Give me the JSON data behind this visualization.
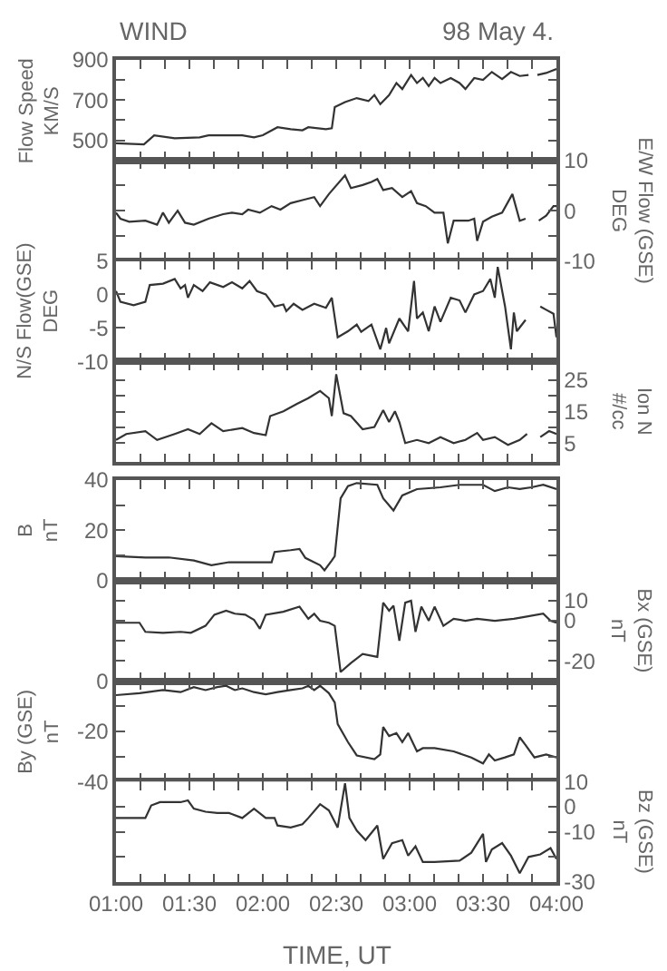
{
  "chart_data": [
    {
      "type": "line",
      "title": "WIND",
      "subtitle": "98 May 4.",
      "ylabel": "Flow Speed\nKM/S",
      "tick_labels": "y",
      "xlim": [
        1,
        4
      ],
      "xticks": [
        {
          "value": 1,
          "label": null
        },
        {
          "value": 1.1667,
          "label": null
        },
        {
          "value": 1.3333,
          "label": null
        },
        {
          "value": 1.5,
          "label": null
        },
        {
          "value": 1.6667,
          "label": null
        },
        {
          "value": 1.8333,
          "label": null
        },
        {
          "value": 2,
          "label": null
        },
        {
          "value": 2.1667,
          "label": null
        },
        {
          "value": 2.3333,
          "label": null
        },
        {
          "value": 2.5,
          "label": null
        },
        {
          "value": 2.6667,
          "label": null
        },
        {
          "value": 2.8333,
          "label": null
        },
        {
          "value": 3,
          "label": null
        },
        {
          "value": 3.1667,
          "label": null
        },
        {
          "value": 3.3333,
          "label": null
        },
        {
          "value": 3.5,
          "label": null
        },
        {
          "value": 3.6667,
          "label": null
        },
        {
          "value": 3.8333,
          "label": null
        },
        {
          "value": 4,
          "label": null
        }
      ],
      "ylim": [
        400,
        900
      ],
      "yticks": [
        {
          "value": 400,
          "label": null
        },
        500,
        {
          "value": 600,
          "label": null
        },
        700,
        {
          "value": 800,
          "label": null
        },
        900
      ],
      "series": [
        {
          "color": "#333333",
          "x": [
            1.0,
            1.19,
            1.26,
            1.4,
            1.57,
            1.63,
            1.86,
            1.94,
            2.0,
            2.1,
            2.19,
            2.27,
            2.31,
            2.43,
            2.47,
            2.49,
            2.56,
            2.64,
            2.72,
            2.76,
            2.8,
            2.86,
            2.91,
            2.95,
            3.01,
            3.05,
            3.09,
            3.13,
            3.17,
            3.21,
            3.28,
            3.34,
            3.38,
            3.44,
            3.5,
            3.56,
            3.63,
            3.69,
            3.75,
            3.81
          ],
          "values": [
            485,
            480,
            525,
            510,
            515,
            525,
            525,
            515,
            525,
            565,
            555,
            550,
            565,
            555,
            560,
            665,
            690,
            710,
            695,
            725,
            680,
            725,
            785,
            755,
            825,
            785,
            810,
            770,
            810,
            785,
            810,
            785,
            755,
            810,
            800,
            840,
            805,
            840,
            820,
            825
          ]
        },
        {
          "color": "#333333",
          "x": [
            3.87,
            3.93,
            4.0
          ],
          "values": [
            825,
            835,
            855
          ]
        }
      ]
    },
    {
      "type": "line",
      "y2label": "E/W Flow (GSE)\nDEG",
      "tick_labels": "y",
      "xlim": [
        1,
        4
      ],
      "xticks": [
        {
          "value": 1,
          "label": null
        },
        {
          "value": 1.1667,
          "label": null
        },
        {
          "value": 1.3333,
          "label": null
        },
        {
          "value": 1.5,
          "label": null
        },
        {
          "value": 1.6667,
          "label": null
        },
        {
          "value": 1.8333,
          "label": null
        },
        {
          "value": 2,
          "label": null
        },
        {
          "value": 2.1667,
          "label": null
        },
        {
          "value": 2.3333,
          "label": null
        },
        {
          "value": 2.5,
          "label": null
        },
        {
          "value": 2.6667,
          "label": null
        },
        {
          "value": 2.8333,
          "label": null
        },
        {
          "value": 3,
          "label": null
        },
        {
          "value": 3.1667,
          "label": null
        },
        {
          "value": 3.3333,
          "label": null
        },
        {
          "value": 3.5,
          "label": null
        },
        {
          "value": 3.6667,
          "label": null
        },
        {
          "value": 3.8333,
          "label": null
        },
        {
          "value": 4,
          "label": null
        }
      ],
      "y2lim": [
        -10,
        10
      ],
      "y2ticks": [
        -10,
        {
          "value": -5,
          "label": null
        },
        0,
        {
          "value": 5,
          "label": null
        },
        10
      ],
      "series": [
        {
          "color": "#333333",
          "axis": "y2",
          "x": [
            1.0,
            1.03,
            1.09,
            1.2,
            1.28,
            1.32,
            1.36,
            1.42,
            1.47,
            1.53,
            1.63,
            1.73,
            1.79,
            1.86,
            1.9,
            1.98,
            2.06,
            2.12,
            2.19,
            2.27,
            2.35,
            2.39,
            2.45,
            2.56,
            2.6,
            2.68,
            2.74,
            2.78,
            2.82,
            2.88,
            2.95,
            3.01,
            3.05,
            3.11,
            3.17,
            3.23,
            3.26,
            3.3,
            3.4,
            3.44,
            3.46,
            3.5,
            3.56,
            3.63,
            3.7,
            3.75,
            3.79
          ],
          "values": [
            -0.4,
            -1.6,
            -2.2,
            -2.0,
            -2.8,
            -0.4,
            -2.4,
            0,
            -2.4,
            -2.8,
            -1.6,
            -0.7,
            -0.4,
            -0.7,
            0.2,
            -0.4,
            0.9,
            0.2,
            1.5,
            2.1,
            2.7,
            0.9,
            3.3,
            7.0,
            4.5,
            5.1,
            5.7,
            6.3,
            4.1,
            4.5,
            2.7,
            3.9,
            1.5,
            0.9,
            -0.4,
            -0.4,
            -6.5,
            -2.0,
            -2.0,
            -1.6,
            -6.0,
            -2.2,
            -1.2,
            -0.4,
            3.3,
            -2.0,
            -1.6
          ]
        },
        {
          "color": "#333333",
          "axis": "y2",
          "x": [
            3.88,
            3.93,
            3.98,
            4.0
          ],
          "values": [
            -2.0,
            -1.0,
            0.9,
            0.9
          ]
        }
      ]
    },
    {
      "type": "line",
      "ylabel": "N/S Flow(GSE)\nDEG",
      "tick_labels": "y",
      "xlim": [
        1,
        4
      ],
      "xticks": [
        {
          "value": 1,
          "label": null
        },
        {
          "value": 1.1667,
          "label": null
        },
        {
          "value": 1.3333,
          "label": null
        },
        {
          "value": 1.5,
          "label": null
        },
        {
          "value": 1.6667,
          "label": null
        },
        {
          "value": 1.8333,
          "label": null
        },
        {
          "value": 2,
          "label": null
        },
        {
          "value": 2.1667,
          "label": null
        },
        {
          "value": 2.3333,
          "label": null
        },
        {
          "value": 2.5,
          "label": null
        },
        {
          "value": 2.6667,
          "label": null
        },
        {
          "value": 2.8333,
          "label": null
        },
        {
          "value": 3,
          "label": null
        },
        {
          "value": 3.1667,
          "label": null
        },
        {
          "value": 3.3333,
          "label": null
        },
        {
          "value": 3.5,
          "label": null
        },
        {
          "value": 3.6667,
          "label": null
        },
        {
          "value": 3.8333,
          "label": null
        },
        {
          "value": 4,
          "label": null
        }
      ],
      "ylim": [
        -10,
        5
      ],
      "yticks": [
        -10,
        -5,
        0,
        5
      ],
      "series": [
        {
          "color": "#333333",
          "x": [
            1.0,
            1.03,
            1.12,
            1.2,
            1.23,
            1.32,
            1.4,
            1.44,
            1.47,
            1.49,
            1.53,
            1.59,
            1.64,
            1.73,
            1.79,
            1.86,
            1.91,
            1.96,
            2.02,
            2.08,
            2.14,
            2.16,
            2.21,
            2.27,
            2.35,
            2.43,
            2.47,
            2.51,
            2.58,
            2.64,
            2.67,
            2.74,
            2.8,
            2.84,
            2.86,
            2.93,
            2.99,
            3.03,
            3.05,
            3.09,
            3.13,
            3.17,
            3.21,
            3.28,
            3.34,
            3.38,
            3.44,
            3.5,
            3.55,
            3.58,
            3.6,
            3.65,
            3.69,
            3.71,
            3.73,
            3.79
          ],
          "values": [
            0.5,
            -1.1,
            -1.6,
            -1.1,
            1.4,
            1.6,
            2.3,
            0.9,
            1.4,
            -0.5,
            1.4,
            0.5,
            1.8,
            1.1,
            1.8,
            0.9,
            2.0,
            0.5,
            0,
            -1.8,
            -1.5,
            -2.5,
            -1.4,
            -2.3,
            -1.4,
            -2.0,
            -0.5,
            -6.4,
            -5.5,
            -4.5,
            -5.6,
            -4.5,
            -8.2,
            -5.0,
            -7.3,
            -3.6,
            -5.5,
            2.0,
            -3.6,
            -2.7,
            -5.5,
            -1.8,
            -4.1,
            -0.5,
            -0.9,
            -2.7,
            0,
            0.5,
            2.3,
            -0.5,
            4.1,
            -1.8,
            -8.2,
            -2.7,
            -5.5,
            -3.8
          ]
        },
        {
          "color": "#333333",
          "x": [
            3.89,
            3.93,
            3.98,
            4.0
          ],
          "values": [
            -1.8,
            -2.3,
            -2.9,
            -6.4
          ]
        }
      ]
    },
    {
      "type": "line",
      "y2label": "Ion N\n#/cc",
      "tick_labels": "y",
      "xlim": [
        1,
        4
      ],
      "xticks": [
        {
          "value": 1,
          "label": null
        },
        {
          "value": 1.1667,
          "label": null
        },
        {
          "value": 1.3333,
          "label": null
        },
        {
          "value": 1.5,
          "label": null
        },
        {
          "value": 1.6667,
          "label": null
        },
        {
          "value": 1.8333,
          "label": null
        },
        {
          "value": 2,
          "label": null
        },
        {
          "value": 2.1667,
          "label": null
        },
        {
          "value": 2.3333,
          "label": null
        },
        {
          "value": 2.5,
          "label": null
        },
        {
          "value": 2.6667,
          "label": null
        },
        {
          "value": 2.8333,
          "label": null
        },
        {
          "value": 3,
          "label": null
        },
        {
          "value": 3.1667,
          "label": null
        },
        {
          "value": 3.3333,
          "label": null
        },
        {
          "value": 3.5,
          "label": null
        },
        {
          "value": 3.6667,
          "label": null
        },
        {
          "value": 3.8333,
          "label": null
        },
        {
          "value": 4,
          "label": null
        }
      ],
      "y2lim": [
        -1,
        31
      ],
      "y2ticks": [
        5,
        {
          "value": 10,
          "label": null
        },
        15,
        {
          "value": 20,
          "label": null
        },
        25
      ],
      "series": [
        {
          "color": "#333333",
          "axis": "y2",
          "x": [
            1.0,
            1.07,
            1.2,
            1.28,
            1.4,
            1.49,
            1.57,
            1.65,
            1.73,
            1.86,
            1.94,
            2.02,
            2.05,
            2.14,
            2.23,
            2.31,
            2.39,
            2.45,
            2.47,
            2.5,
            2.55,
            2.6,
            2.68,
            2.76,
            2.82,
            2.86,
            2.9,
            2.93,
            2.97,
            3.05,
            3.13,
            3.21,
            3.3,
            3.38,
            3.46,
            3.5,
            3.58,
            3.67,
            3.75,
            3.8
          ],
          "values": [
            6.0,
            7.9,
            8.8,
            6.0,
            7.9,
            9.4,
            7.9,
            11.3,
            8.8,
            9.8,
            8.2,
            7.5,
            13.6,
            15.1,
            17.4,
            19.3,
            21.6,
            19.3,
            13.6,
            26.9,
            14.5,
            13.6,
            9.4,
            10.1,
            15.5,
            11.7,
            15.1,
            11.7,
            5.0,
            6.0,
            5.0,
            6.9,
            5.0,
            6.0,
            8.2,
            6.0,
            6.9,
            4.4,
            6.0,
            7.9
          ]
        },
        {
          "color": "#333333",
          "axis": "y2",
          "x": [
            3.89,
            3.95,
            4.0
          ],
          "values": [
            6.9,
            8.8,
            7.9
          ]
        }
      ]
    },
    {
      "type": "line",
      "ylabel": "B\nnT",
      "tick_labels": "y",
      "xlim": [
        1,
        4
      ],
      "xticks": [
        {
          "value": 1,
          "label": null
        },
        {
          "value": 1.1667,
          "label": null
        },
        {
          "value": 1.3333,
          "label": null
        },
        {
          "value": 1.5,
          "label": null
        },
        {
          "value": 1.6667,
          "label": null
        },
        {
          "value": 1.8333,
          "label": null
        },
        {
          "value": 2,
          "label": null
        },
        {
          "value": 2.1667,
          "label": null
        },
        {
          "value": 2.3333,
          "label": null
        },
        {
          "value": 2.5,
          "label": null
        },
        {
          "value": 2.6667,
          "label": null
        },
        {
          "value": 2.8333,
          "label": null
        },
        {
          "value": 3,
          "label": null
        },
        {
          "value": 3.1667,
          "label": null
        },
        {
          "value": 3.3333,
          "label": null
        },
        {
          "value": 3.5,
          "label": null
        },
        {
          "value": 3.6667,
          "label": null
        },
        {
          "value": 3.8333,
          "label": null
        },
        {
          "value": 4,
          "label": null
        }
      ],
      "ylim": [
        0,
        40
      ],
      "yticks": [
        0,
        {
          "value": 10,
          "label": null
        },
        20,
        {
          "value": 30,
          "label": null
        },
        40
      ],
      "series": [
        {
          "color": "#333333",
          "x": [
            1.0,
            1.2,
            1.36,
            1.53,
            1.65,
            1.77,
            1.94,
            2.06,
            2.08,
            2.19,
            2.25,
            2.29,
            2.39,
            2.42,
            2.47,
            2.49,
            2.53,
            2.58,
            2.64,
            2.78,
            2.82,
            2.89,
            2.95,
            3.05,
            3.21,
            3.34,
            3.5,
            3.58,
            3.67,
            3.75,
            3.83,
            3.91,
            4.0
          ],
          "values": [
            9.7,
            9.2,
            9.2,
            8.0,
            6.1,
            7.3,
            7.3,
            7.3,
            11.4,
            12.1,
            12.6,
            9.0,
            6.1,
            4.1,
            8.0,
            9.7,
            32.7,
            37.6,
            38.8,
            38.1,
            32.7,
            27.9,
            33.9,
            36.4,
            37.1,
            38.1,
            38.1,
            35.6,
            37.1,
            36.4,
            37.1,
            38.1,
            36.4
          ]
        }
      ]
    },
    {
      "type": "line",
      "y2label": "Bx (GSE)\nnT",
      "tick_labels": "y",
      "xlim": [
        1,
        4
      ],
      "xticks": [
        {
          "value": 1,
          "label": null
        },
        {
          "value": 1.1667,
          "label": null
        },
        {
          "value": 1.3333,
          "label": null
        },
        {
          "value": 1.5,
          "label": null
        },
        {
          "value": 1.6667,
          "label": null
        },
        {
          "value": 1.8333,
          "label": null
        },
        {
          "value": 2,
          "label": null
        },
        {
          "value": 2.1667,
          "label": null
        },
        {
          "value": 2.3333,
          "label": null
        },
        {
          "value": 2.5,
          "label": null
        },
        {
          "value": 2.6667,
          "label": null
        },
        {
          "value": 2.8333,
          "label": null
        },
        {
          "value": 3,
          "label": null
        },
        {
          "value": 3.1667,
          "label": null
        },
        {
          "value": 3.3333,
          "label": null
        },
        {
          "value": 3.5,
          "label": null
        },
        {
          "value": 3.6667,
          "label": null
        },
        {
          "value": 3.8333,
          "label": null
        },
        {
          "value": 4,
          "label": null
        }
      ],
      "y2lim": [
        -30,
        20
      ],
      "y2ticks": [
        -20,
        {
          "value": -10,
          "label": null
        },
        0,
        10
      ],
      "series": [
        {
          "color": "#333333",
          "axis": "y2",
          "x": [
            1.0,
            1.16,
            1.2,
            1.32,
            1.44,
            1.51,
            1.61,
            1.67,
            1.75,
            1.81,
            1.88,
            1.94,
            1.98,
            2.02,
            2.14,
            2.25,
            2.31,
            2.35,
            2.39,
            2.45,
            2.49,
            2.53,
            2.6,
            2.68,
            2.78,
            2.82,
            2.86,
            2.89,
            2.93,
            2.97,
            3.01,
            3.04,
            3.08,
            3.13,
            3.17,
            3.23,
            3.3,
            3.38,
            3.46,
            3.58,
            3.71,
            3.79,
            3.91,
            3.96,
            4.0
          ],
          "values": [
            -1,
            -1,
            -5.5,
            -6,
            -5.5,
            -6,
            -2.5,
            3,
            5,
            3.5,
            3,
            0.5,
            -4,
            3,
            4.5,
            7,
            1,
            3.5,
            0,
            -1,
            -2.5,
            -25.5,
            -21,
            -16.5,
            -18,
            9,
            5,
            7.5,
            -10,
            9,
            10,
            -5.5,
            7,
            0,
            7,
            -2.5,
            1,
            0,
            1,
            0,
            1,
            2,
            3.5,
            0,
            -1
          ]
        }
      ]
    },
    {
      "type": "line",
      "ylabel": "By (GSE)\nnT",
      "tick_labels": "y",
      "xlim": [
        1,
        4
      ],
      "xticks": [
        {
          "value": 1,
          "label": null
        },
        {
          "value": 1.1667,
          "label": null
        },
        {
          "value": 1.3333,
          "label": null
        },
        {
          "value": 1.5,
          "label": null
        },
        {
          "value": 1.6667,
          "label": null
        },
        {
          "value": 1.8333,
          "label": null
        },
        {
          "value": 2,
          "label": null
        },
        {
          "value": 2.1667,
          "label": null
        },
        {
          "value": 2.3333,
          "label": null
        },
        {
          "value": 2.5,
          "label": null
        },
        {
          "value": 2.6667,
          "label": null
        },
        {
          "value": 2.8333,
          "label": null
        },
        {
          "value": 3,
          "label": null
        },
        {
          "value": 3.1667,
          "label": null
        },
        {
          "value": 3.3333,
          "label": null
        },
        {
          "value": 3.5,
          "label": null
        },
        {
          "value": 3.6667,
          "label": null
        },
        {
          "value": 3.8333,
          "label": null
        },
        {
          "value": 4,
          "label": null
        }
      ],
      "ylim": [
        -40,
        0
      ],
      "yticks": [
        -40,
        {
          "value": -30,
          "label": null
        },
        -20,
        {
          "value": -10,
          "label": null
        },
        0
      ],
      "series": [
        {
          "color": "#333333",
          "x": [
            1.0,
            1.16,
            1.32,
            1.44,
            1.53,
            1.61,
            1.69,
            1.75,
            1.81,
            1.86,
            1.94,
            2.02,
            2.1,
            2.19,
            2.27,
            2.31,
            2.35,
            2.39,
            2.45,
            2.49,
            2.51,
            2.58,
            2.64,
            2.76,
            2.8,
            2.82,
            2.86,
            2.91,
            2.95,
            2.99,
            3.05,
            3.09,
            3.17,
            3.3,
            3.42,
            3.5,
            3.54,
            3.58,
            3.65,
            3.71,
            3.75,
            3.79,
            3.85,
            3.93,
            4.0
          ],
          "values": [
            -5.6,
            -4.8,
            -3.6,
            -4.4,
            -2.4,
            -3.6,
            -2.4,
            -1.9,
            -3.6,
            -2.9,
            -4.4,
            -5.3,
            -4.4,
            -3.6,
            -2.9,
            -1.9,
            -3.6,
            -1.9,
            -4.8,
            -8.5,
            -17.1,
            -24.3,
            -29.6,
            -31.1,
            -29.2,
            -18.3,
            -21.9,
            -20.7,
            -24.3,
            -20.7,
            -28.0,
            -26.7,
            -26.7,
            -28.0,
            -30.4,
            -32.8,
            -29.2,
            -31.6,
            -30.4,
            -29.2,
            -22.4,
            -25.5,
            -30.4,
            -29.2,
            -30.4
          ]
        }
      ]
    },
    {
      "type": "line",
      "y2label": "Bz (GSE)\nnT",
      "xlabel": "TIME, UT",
      "xlim": [
        1,
        4
      ],
      "xticks": [
        {
          "value": 1,
          "label": "01:00"
        },
        {
          "value": 1.1667,
          "label": null
        },
        {
          "value": 1.3333,
          "label": null
        },
        {
          "value": 1.5,
          "label": "01:30"
        },
        {
          "value": 1.6667,
          "label": null
        },
        {
          "value": 1.8333,
          "label": null
        },
        {
          "value": 2,
          "label": "02:00"
        },
        {
          "value": 2.1667,
          "label": null
        },
        {
          "value": 2.3333,
          "label": null
        },
        {
          "value": 2.5,
          "label": "02:30"
        },
        {
          "value": 2.6667,
          "label": null
        },
        {
          "value": 2.8333,
          "label": null
        },
        {
          "value": 3,
          "label": "03:00"
        },
        {
          "value": 3.1667,
          "label": null
        },
        {
          "value": 3.3333,
          "label": null
        },
        {
          "value": 3.5,
          "label": "03:30"
        },
        {
          "value": 3.6667,
          "label": null
        },
        {
          "value": 3.8333,
          "label": null
        },
        {
          "value": 4,
          "label": "04:00"
        }
      ],
      "y2lim": [
        -30,
        10
      ],
      "y2ticks": [
        -30,
        {
          "value": -20,
          "label": null
        },
        -10,
        0,
        10
      ],
      "series": [
        {
          "color": "#333333",
          "axis": "y2",
          "x": [
            1.0,
            1.2,
            1.24,
            1.3,
            1.44,
            1.49,
            1.53,
            1.61,
            1.69,
            1.77,
            1.86,
            1.94,
            2.02,
            2.08,
            2.1,
            2.19,
            2.27,
            2.31,
            2.39,
            2.45,
            2.51,
            2.56,
            2.59,
            2.64,
            2.7,
            2.78,
            2.82,
            2.88,
            2.95,
            2.99,
            3.04,
            3.09,
            3.17,
            3.34,
            3.42,
            3.5,
            3.52,
            3.56,
            3.63,
            3.69,
            3.75,
            3.81,
            3.89,
            3.96,
            4.0
          ],
          "values": [
            -4.5,
            -4.5,
            0.5,
            1.8,
            1.8,
            2.5,
            -0.8,
            -2.0,
            -2.5,
            -2.5,
            -4.5,
            -0.8,
            -4.5,
            -4.5,
            -7.5,
            -8.3,
            -7.0,
            -4.5,
            1.0,
            -1.5,
            -8.3,
            9.3,
            -4.5,
            -9.5,
            -13.3,
            -7.5,
            -20.8,
            -14.5,
            -13.3,
            -19.5,
            -15.8,
            -22.0,
            -22.0,
            -21.5,
            -18.3,
            -10.8,
            -22.0,
            -17.0,
            -14.5,
            -19.5,
            -26.5,
            -20.0,
            -19.0,
            -16.5,
            -20.8
          ]
        }
      ]
    }
  ]
}
